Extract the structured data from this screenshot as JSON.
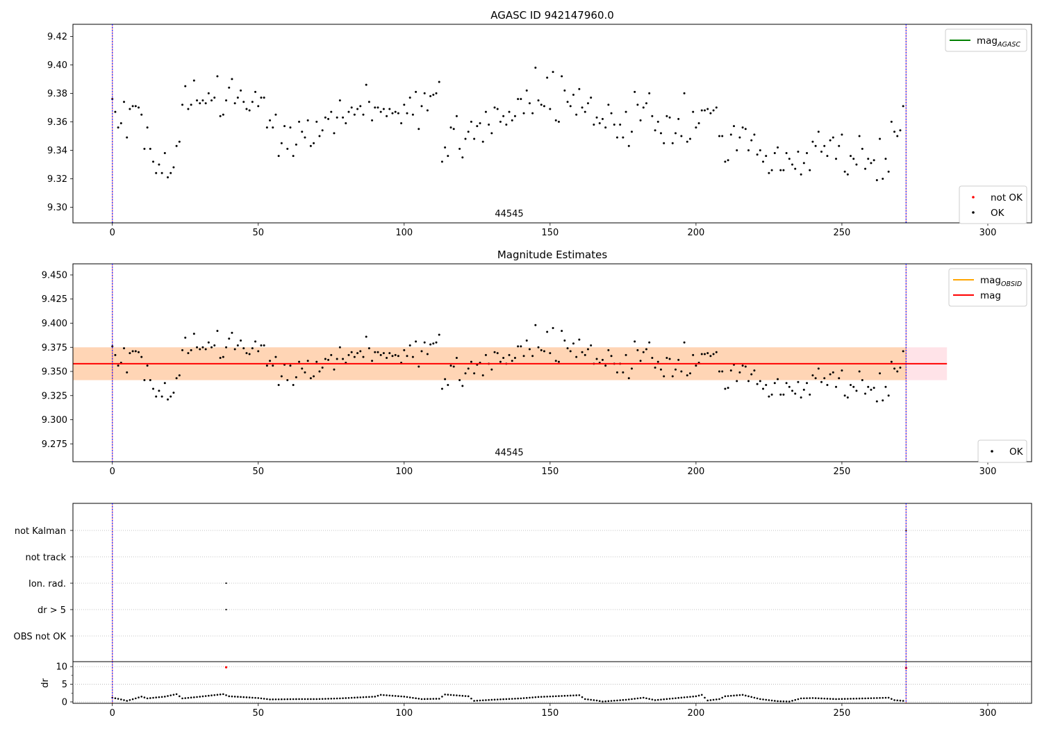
{
  "chart_data": [
    {
      "id": "agasc",
      "type": "scatter",
      "title": "AGASC ID 942147960.0",
      "annotation": "44545",
      "xlim": [
        -13.5,
        315
      ],
      "ylim": [
        9.289,
        9.4285
      ],
      "xticks": [
        0,
        50,
        100,
        150,
        200,
        250,
        300
      ],
      "yticks": [
        9.3,
        9.32,
        9.34,
        9.36,
        9.38,
        9.4,
        9.42
      ],
      "ytick_format": 2,
      "vlines": [
        0,
        272
      ],
      "legend_upper": {
        "entries": [
          {
            "label": "mag",
            "sub": "AGASC",
            "color": "#008000",
            "kind": "line"
          }
        ]
      },
      "legend_lower": {
        "entries": [
          {
            "label": "not OK",
            "color": "#ff0000",
            "kind": "point"
          },
          {
            "label": "OK",
            "color": "#000000",
            "kind": "point"
          }
        ]
      },
      "series": [
        {
          "name": "OK",
          "color": "#000000",
          "y": [
            9.376,
            9.367,
            9.356,
            9.359,
            9.374,
            9.349,
            9.369,
            9.371,
            9.371,
            9.37,
            9.365,
            9.341,
            9.356,
            9.341,
            9.332,
            9.324,
            9.33,
            9.324,
            9.338,
            9.321,
            9.324,
            9.328,
            9.343,
            9.346,
            9.372,
            9.385,
            9.369,
            9.372,
            9.389,
            9.375,
            9.373,
            9.375,
            9.373,
            9.38,
            9.375,
            9.377,
            9.392,
            9.364,
            9.365,
            9.375,
            9.384,
            9.39,
            9.373,
            9.377,
            9.382,
            9.374,
            9.369,
            9.368,
            9.374,
            9.381,
            9.371,
            9.377,
            9.377,
            9.356,
            9.361,
            9.356,
            9.365,
            9.336,
            9.345,
            9.357,
            9.341,
            9.356,
            9.336,
            9.344,
            9.36,
            9.353,
            9.349,
            9.361,
            9.343,
            9.345,
            9.36,
            9.35,
            9.354,
            9.363,
            9.362,
            9.367,
            9.352,
            9.363,
            9.375,
            9.363,
            9.359,
            9.367,
            9.37,
            9.365,
            9.369,
            9.371,
            9.365,
            9.386,
            9.374,
            9.361,
            9.37,
            9.37,
            9.367,
            9.369,
            9.364,
            9.369,
            9.366,
            9.367,
            9.366,
            9.359,
            9.372,
            9.366,
            9.377,
            9.365,
            9.381,
            9.355,
            9.371,
            9.38,
            9.368,
            9.378,
            9.379,
            9.38,
            9.388,
            9.332,
            9.342,
            9.336,
            9.356,
            9.355,
            9.364,
            9.341,
            9.335,
            9.348,
            9.353,
            9.36,
            9.348,
            9.357,
            9.359,
            9.346,
            9.367,
            9.358,
            9.352,
            9.37,
            9.369,
            9.36,
            9.364,
            9.358,
            9.367,
            9.361,
            9.364,
            9.376,
            9.376,
            9.366,
            9.382,
            9.373,
            9.366,
            9.398,
            9.375,
            9.372,
            9.371,
            9.391,
            9.369,
            9.395,
            9.361,
            9.36,
            9.392,
            9.382,
            9.374,
            9.371,
            9.379,
            9.365,
            9.383,
            9.37,
            9.367,
            9.373,
            9.377,
            9.358,
            9.363,
            9.359,
            9.362,
            9.356,
            9.372,
            9.366,
            9.358,
            9.349,
            9.358,
            9.349,
            9.367,
            9.343,
            9.353,
            9.381,
            9.372,
            9.361,
            9.37,
            9.373,
            9.38,
            9.364,
            9.354,
            9.36,
            9.352,
            9.345,
            9.364,
            9.363,
            9.345,
            9.352,
            9.362,
            9.35,
            9.38,
            9.346,
            9.348,
            9.367,
            9.356,
            9.359,
            9.368,
            9.368,
            9.369,
            9.366,
            9.368,
            9.37,
            9.35,
            9.35,
            9.332,
            9.333,
            9.351,
            9.357,
            9.34,
            9.349,
            9.356,
            9.355,
            9.34,
            9.347,
            9.351,
            9.337,
            9.34,
            9.332,
            9.336,
            9.324,
            9.326,
            9.338,
            9.342,
            9.326,
            9.326,
            9.338,
            9.334,
            9.33,
            9.327,
            9.339,
            9.323,
            9.331,
            9.338,
            9.326,
            9.346,
            9.343,
            9.353,
            9.339,
            9.343,
            9.336,
            9.347,
            9.349,
            9.334,
            9.343,
            9.351,
            9.325,
            9.323,
            9.336,
            9.334,
            9.33,
            9.35,
            9.341,
            9.327,
            9.334,
            9.331,
            9.333,
            9.319,
            9.348,
            9.32,
            9.334,
            9.325,
            9.36,
            9.353,
            9.35,
            9.354,
            9.371
          ]
        }
      ]
    },
    {
      "id": "estimates",
      "type": "scatter",
      "title": "Magnitude Estimates",
      "annotation": "44545",
      "xlim": [
        -13.5,
        315
      ],
      "ylim": [
        9.2565,
        9.4615
      ],
      "xticks": [
        0,
        50,
        100,
        150,
        200,
        250,
        300
      ],
      "yticks": [
        9.275,
        9.3,
        9.325,
        9.35,
        9.375,
        9.4,
        9.425,
        9.45
      ],
      "ytick_format": 3,
      "vlines": [
        0,
        272
      ],
      "mag": 9.358,
      "mag_band": [
        9.341,
        9.375
      ],
      "band_x": [
        -13.5,
        286
      ],
      "legend_upper": {
        "entries": [
          {
            "label": "mag",
            "sub": "OBSID",
            "color": "#ffa500",
            "kind": "line"
          },
          {
            "label": "mag",
            "color": "#ff0000",
            "kind": "line"
          }
        ]
      },
      "legend_lower": {
        "entries": [
          {
            "label": "OK",
            "color": "#000000",
            "kind": "point"
          }
        ]
      }
    },
    {
      "id": "flags",
      "type": "scatter",
      "xlim": [
        -13.5,
        315
      ],
      "categories": [
        "OBS not OK",
        "dr > 5",
        "Ion. rad.",
        "not track",
        "not Kalman"
      ],
      "points": [
        {
          "x": 39,
          "category": "Ion. rad."
        },
        {
          "x": 39,
          "category": "dr > 5"
        },
        {
          "x": 272,
          "category": "not Kalman"
        }
      ],
      "vlines": [
        0,
        272
      ]
    },
    {
      "id": "dr",
      "type": "scatter",
      "ylabel": "dr",
      "xlim": [
        -13.5,
        315
      ],
      "ylim": [
        -0.4,
        11.4
      ],
      "xticks": [
        0,
        50,
        100,
        150,
        200,
        250,
        300
      ],
      "yticks": [
        0,
        5,
        10
      ],
      "vlines": [
        0,
        272
      ],
      "red_points": [
        {
          "x": 39,
          "y": 9.8
        },
        {
          "x": 272,
          "y": 9.6
        }
      ],
      "dr_keypoints": [
        [
          0,
          1.2
        ],
        [
          3,
          0.7
        ],
        [
          5,
          0.3
        ],
        [
          8,
          1.0
        ],
        [
          10,
          1.5
        ],
        [
          12,
          1.0
        ],
        [
          18,
          1.5
        ],
        [
          22,
          2.2
        ],
        [
          24,
          1.0
        ],
        [
          28,
          1.3
        ],
        [
          38,
          2.2
        ],
        [
          40,
          1.6
        ],
        [
          50,
          1.1
        ],
        [
          54,
          0.7
        ],
        [
          64,
          0.8
        ],
        [
          70,
          0.8
        ],
        [
          78,
          1.0
        ],
        [
          90,
          1.5
        ],
        [
          92,
          2.0
        ],
        [
          100,
          1.5
        ],
        [
          106,
          0.8
        ],
        [
          112,
          0.9
        ],
        [
          114,
          2.1
        ],
        [
          122,
          1.6
        ],
        [
          124,
          0.3
        ],
        [
          130,
          0.6
        ],
        [
          140,
          1.0
        ],
        [
          146,
          1.4
        ],
        [
          160,
          1.9
        ],
        [
          162,
          0.8
        ],
        [
          166,
          0.4
        ],
        [
          168,
          0.1
        ],
        [
          176,
          0.6
        ],
        [
          182,
          1.2
        ],
        [
          186,
          0.5
        ],
        [
          200,
          1.6
        ],
        [
          202,
          2.0
        ],
        [
          204,
          0.4
        ],
        [
          208,
          0.8
        ],
        [
          210,
          1.6
        ],
        [
          216,
          2.0
        ],
        [
          222,
          0.8
        ],
        [
          228,
          0.2
        ],
        [
          232,
          0.1
        ],
        [
          236,
          1.0
        ],
        [
          240,
          1.1
        ],
        [
          248,
          0.8
        ],
        [
          258,
          1.0
        ],
        [
          266,
          1.2
        ],
        [
          268,
          0.5
        ],
        [
          271,
          0.3
        ]
      ]
    }
  ]
}
